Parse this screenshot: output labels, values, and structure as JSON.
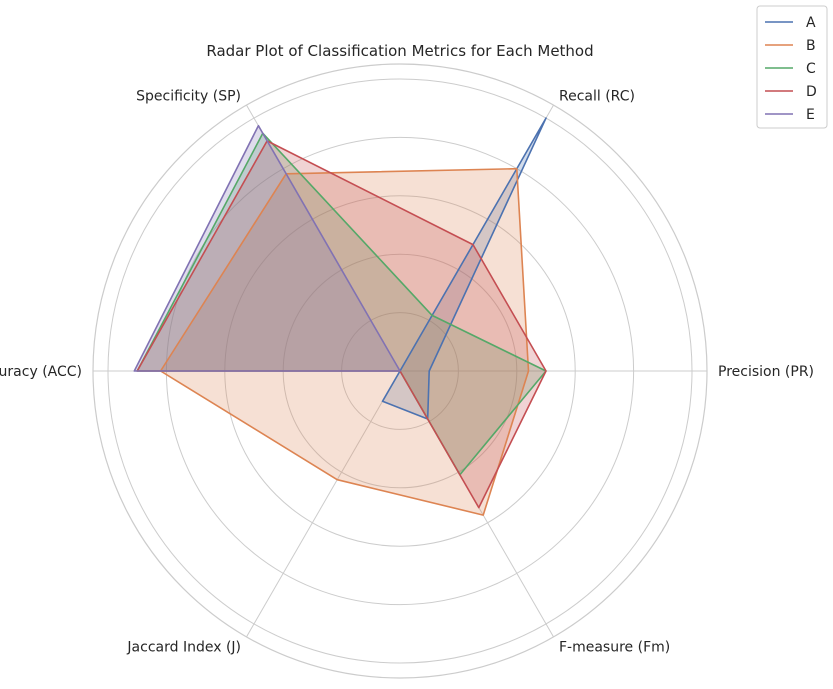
{
  "chart_data": {
    "type": "radar",
    "title": "Radar Plot of Classification Metrics for Each Method",
    "axes": [
      "Precision (PR)",
      "Recall (RC)",
      "Specificity (SP)",
      "Accuracy (ACC)",
      "Jaccard Index (J)",
      "F-measure (Fm)"
    ],
    "r_range": [
      0,
      1
    ],
    "grid": true,
    "legend_position": "top-right",
    "series": [
      {
        "name": "A",
        "color": "#4c72b0",
        "values": [
          0.1,
          1.0,
          0.0,
          0.0,
          0.12,
          0.19
        ]
      },
      {
        "name": "B",
        "color": "#dd8452",
        "values": [
          0.44,
          0.8,
          0.78,
          0.82,
          0.43,
          0.57
        ]
      },
      {
        "name": "C",
        "color": "#55a868",
        "values": [
          0.5,
          0.22,
          0.94,
          0.9,
          0.0,
          0.41
        ]
      },
      {
        "name": "D",
        "color": "#c44e52",
        "values": [
          0.5,
          0.5,
          0.91,
          0.9,
          0.0,
          0.54
        ]
      },
      {
        "name": "E",
        "color": "#8172b3",
        "values": [
          0.0,
          0.0,
          0.97,
          0.91,
          0.0,
          0.0
        ]
      }
    ]
  }
}
